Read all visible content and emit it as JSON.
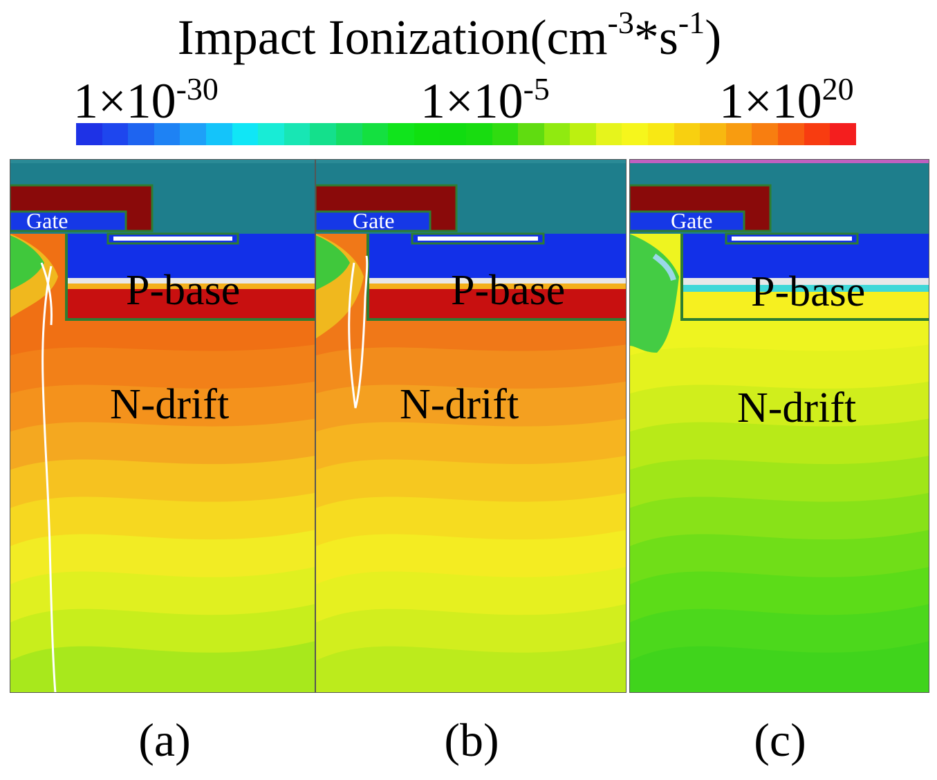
{
  "colorbar": {
    "title_main": "Impact Ionization(cm",
    "title_exp1": "-3",
    "title_mid": "*s",
    "title_exp2": "-1",
    "title_end": ")",
    "ticks": [
      {
        "mantissa": "1×10",
        "exponent": "-30"
      },
      {
        "mantissa": "1×10",
        "exponent": "-5"
      },
      {
        "mantissa": "1×10",
        "exponent": "20"
      }
    ],
    "colors": [
      "#1e32e6",
      "#1e46ee",
      "#1e64f0",
      "#1e82f4",
      "#1ea0f8",
      "#14c4fa",
      "#10e6f6",
      "#18ecd6",
      "#18e6b4",
      "#14e08c",
      "#14dc64",
      "#14e040",
      "#10e41c",
      "#10e010",
      "#10dc10",
      "#18dc10",
      "#30dc10",
      "#60dc10",
      "#90ea10",
      "#bcf010",
      "#e6f41c",
      "#f6f61c",
      "#f8e814",
      "#f8d010",
      "#f8b810",
      "#f89c10",
      "#f87e10",
      "#f85c10",
      "#f83c10",
      "#f41e1e"
    ]
  },
  "panels": [
    {
      "label": "(a)",
      "gate": "Gate",
      "pbase": "P-base",
      "ndrift": "N-drift",
      "band_colors": [
        "#f07014",
        "#f28018",
        "#f4921c",
        "#f4a820",
        "#f6c220",
        "#f6d820",
        "#f2ec24",
        "#e0f020",
        "#c8ee1c",
        "#a8e81c"
      ]
    },
    {
      "label": "(b)",
      "gate": "Gate",
      "pbase": "P-base",
      "ndrift": "N-drift",
      "band_colors": [
        "#f07818",
        "#f28c1c",
        "#f4a020",
        "#f6b420",
        "#f6c820",
        "#f6dc20",
        "#f4ec22",
        "#e6f020",
        "#d2ee1e",
        "#bceb1c"
      ]
    },
    {
      "label": "(c)",
      "gate": "Gate",
      "pbase": "P-base",
      "ndrift": "N-drift",
      "band_colors": [
        "#eef420",
        "#e4f21e",
        "#d0ee1c",
        "#b8ea18",
        "#a0e618",
        "#88e218",
        "#70de18",
        "#5cdc18",
        "#4cd81c",
        "#40d41c"
      ]
    }
  ]
}
